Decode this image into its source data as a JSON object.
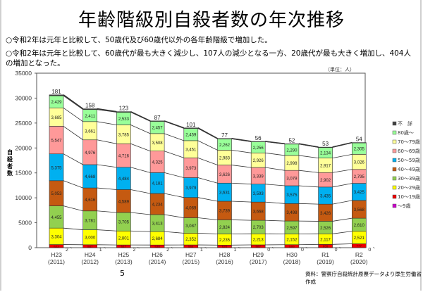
{
  "title": "年齢階級別自殺者数の年次推移",
  "bullets": [
    "○令和2年は元年と比較して、50歳代及び60歳代以外の各年齢階級で増加した。",
    "○令和2年は元年と比較して、60歳代が最も大きく減少し、107人の減少となる一方、20歳代が最も大きく増加し、404人の増加となった。"
  ],
  "page_number": "5",
  "source": "資料：警察庁自殺統計原票データより厚生労働省作成",
  "chart_data": {
    "type": "bar",
    "stacked": true,
    "title": "",
    "unit_label": "（単位：人）",
    "ylabel": "自殺者数",
    "ylim": [
      0,
      35000
    ],
    "yticks": [
      0,
      5000,
      10000,
      15000,
      20000,
      25000,
      30000,
      35000
    ],
    "legend_position": "right",
    "categories": [
      "H23\n(2011)",
      "H24\n(2012)",
      "H25\n(2013)",
      "H26\n(2014)",
      "H27\n(2015)",
      "H28\n(2016)",
      "H29\n(2017)",
      "H30\n(2018)",
      "R1\n(2019)",
      "R2\n(2020)"
    ],
    "category_top": [
      "H23",
      "H24",
      "H25",
      "H26",
      "H27",
      "H28",
      "H29",
      "H30",
      "R1",
      "R2"
    ],
    "category_bottom": [
      "(2011)",
      "(2012)",
      "(2013)",
      "(2014)",
      "(2015)",
      "(2016)",
      "(2017)",
      "(2018)",
      "(2019)",
      "(2020)"
    ],
    "series": [
      {
        "name": "〜9歳",
        "color": "#cc00cc",
        "values": [
          2,
          1,
          2,
          2,
          1,
          1,
          0,
          0,
          0,
          0
        ]
      },
      {
        "name": "10〜19歳",
        "color": "#ee0000",
        "values": [
          622,
          587,
          547,
          538,
          554,
          520,
          567,
          599,
          659,
          777
        ]
      },
      {
        "name": "20〜29歳",
        "color": "#ffff00",
        "values": [
          3304,
          3000,
          2801,
          2684,
          2352,
          2235,
          2213,
          2152,
          2117,
          2521
        ]
      },
      {
        "name": "30〜39歳",
        "color": "#92d050",
        "values": [
          4455,
          3781,
          3705,
          3413,
          3087,
          2824,
          2703,
          2597,
          2526,
          2610
        ]
      },
      {
        "name": "40〜49歳",
        "color": "#c55a11",
        "values": [
          5053,
          4616,
          4589,
          4234,
          4069,
          3739,
          3668,
          3498,
          3426,
          3568
        ]
      },
      {
        "name": "50〜59歳",
        "color": "#00b0f0",
        "values": [
          5375,
          4668,
          4484,
          4181,
          3979,
          3631,
          3593,
          3575,
          3435,
          3425
        ]
      },
      {
        "name": "60〜69歳",
        "color": "#ff9999",
        "values": [
          5547,
          4976,
          4716,
          4325,
          3973,
          3626,
          3339,
          3079,
          2902,
          2795
        ]
      },
      {
        "name": "70〜79歳",
        "color": "#ffff99",
        "values": [
          3685,
          3661,
          3785,
          3508,
          3451,
          2983,
          2926,
          2998,
          2917,
          3026
        ]
      },
      {
        "name": "80歳〜",
        "color": "#99ff99",
        "values": [
          2429,
          2411,
          2533,
          2457,
          2459,
          2262,
          2256,
          2290,
          2134,
          2305
        ]
      },
      {
        "name": "不詳",
        "color": "#404040",
        "values": [
          181,
          158,
          123,
          87,
          101,
          77,
          56,
          52,
          53,
          54
        ]
      }
    ],
    "legend_order": [
      "不　詳",
      "80歳〜",
      "70〜79歳",
      "60〜69歳",
      "50〜59歳",
      "40〜49歳",
      "30〜39歳",
      "20〜29歳",
      "10〜19歳",
      "〜9歳"
    ],
    "legend_colors": [
      "#404040",
      "#99ff99",
      "#ffff99",
      "#ff9999",
      "#00b0f0",
      "#c55a11",
      "#92d050",
      "#ffff00",
      "#ee0000",
      "#cc00cc"
    ]
  }
}
